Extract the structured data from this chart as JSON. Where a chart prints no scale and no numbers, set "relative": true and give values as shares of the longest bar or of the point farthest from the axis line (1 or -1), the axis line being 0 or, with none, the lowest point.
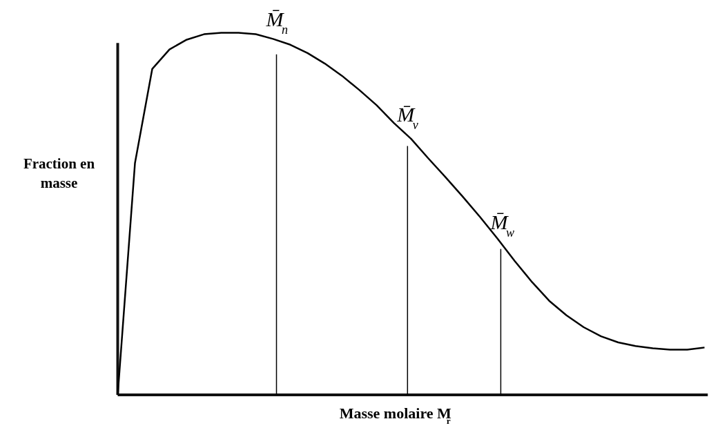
{
  "chart_data": {
    "type": "line",
    "relative": true,
    "xlabel": "Masse molaire M$_{r}$",
    "ylabel": "Fraction en masse",
    "categories": [
      null,
      null,
      null,
      null,
      null,
      null,
      null,
      null,
      null,
      null,
      null,
      null,
      null,
      null,
      null,
      null,
      null,
      null,
      null,
      null,
      null,
      null,
      null,
      null,
      null,
      null,
      null,
      null,
      null,
      null,
      null,
      null,
      null,
      null,
      null
    ],
    "series": [
      {
        "color": "#000000",
        "values": [
          0,
          0.64,
          0.9,
          0.954,
          0.981,
          0.996,
          1,
          1,
          0.996,
          0.983,
          0.967,
          0.944,
          0.915,
          0.881,
          0.842,
          0.8,
          0.751,
          0.707,
          0.653,
          0.601,
          0.547,
          0.491,
          0.432,
          0.37,
          0.312,
          0.26,
          0.22,
          0.187,
          0.162,
          0.145,
          0.135,
          0.129,
          0.125,
          0.125,
          0.131
        ]
      }
    ],
    "annotations": [
      "M̄$_{n}$",
      "M̄$_{v}$",
      "M̄$_{w}$"
    ],
    "grid": false,
    "marker": "none",
    "line_style": "solid"
  }
}
